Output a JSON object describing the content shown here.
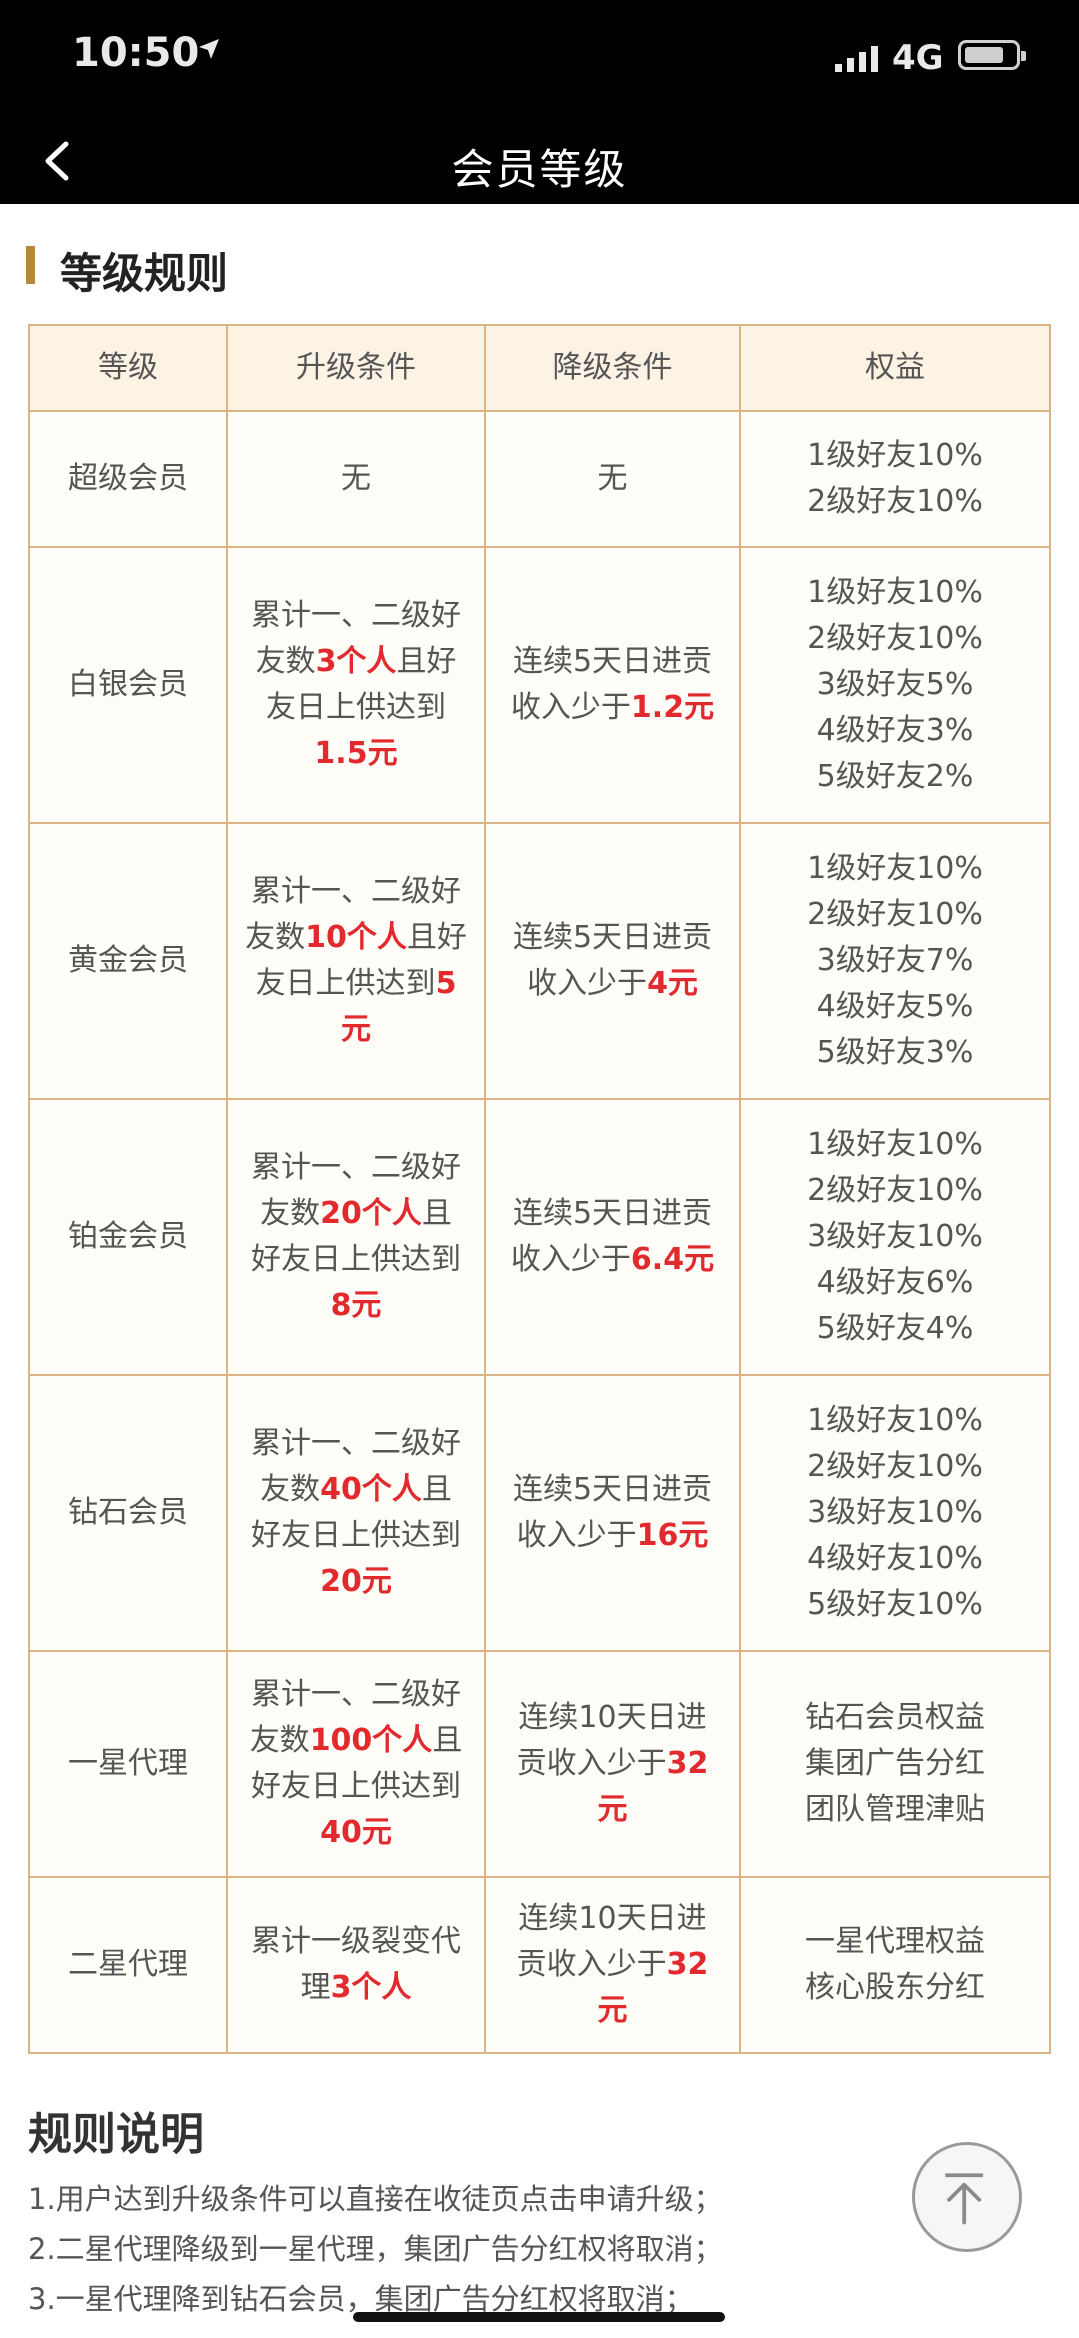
{
  "status_bar": {
    "time": "10:50",
    "network": "4G",
    "icons": [
      "location-arrow-icon",
      "signal-bars-icon",
      "battery-icon"
    ]
  },
  "nav": {
    "back_icon": "chevron-left-icon",
    "title": "会员等级"
  },
  "section": {
    "title": "等级规则",
    "accent_color": "#b8863d"
  },
  "table": {
    "headers": [
      "等级",
      "升级条件",
      "降级条件",
      "权益"
    ],
    "rows": [
      {
        "level": "超级会员",
        "upgrade": [
          [
            "无"
          ]
        ],
        "downgrade": [
          [
            "无"
          ]
        ],
        "benefits": [
          "1级好友10%",
          "2级好友10%"
        ]
      },
      {
        "level": "白银会员",
        "upgrade": [
          [
            "累计一、二级好"
          ],
          [
            "友数",
            {
              "t": "3个人",
              "red": true
            },
            "且好"
          ],
          [
            "友日上供达到"
          ],
          [
            {
              "t": "1.5元",
              "red": true
            }
          ]
        ],
        "downgrade": [
          [
            "连续5天日进贡"
          ],
          [
            "收入少于",
            {
              "t": "1.2元",
              "red": true
            }
          ]
        ],
        "benefits": [
          "1级好友10%",
          "2级好友10%",
          "3级好友5%",
          "4级好友3%",
          "5级好友2%"
        ]
      },
      {
        "level": "黄金会员",
        "upgrade": [
          [
            "累计一、二级好"
          ],
          [
            "友数",
            {
              "t": "10个人",
              "red": true
            },
            "且好"
          ],
          [
            "友日上供达到",
            {
              "t": "5",
              "red": true
            }
          ],
          [
            {
              "t": "元",
              "red": true
            }
          ]
        ],
        "downgrade": [
          [
            "连续5天日进贡"
          ],
          [
            "收入少于",
            {
              "t": "4元",
              "red": true
            }
          ]
        ],
        "benefits": [
          "1级好友10%",
          "2级好友10%",
          "3级好友7%",
          "4级好友5%",
          "5级好友3%"
        ]
      },
      {
        "level": "铂金会员",
        "upgrade": [
          [
            "累计一、二级好"
          ],
          [
            "友数",
            {
              "t": "20个人",
              "red": true
            },
            "且"
          ],
          [
            "好友日上供达到"
          ],
          [
            {
              "t": "8元",
              "red": true
            }
          ]
        ],
        "downgrade": [
          [
            "连续5天日进贡"
          ],
          [
            "收入少于",
            {
              "t": "6.4元",
              "red": true
            }
          ]
        ],
        "benefits": [
          "1级好友10%",
          "2级好友10%",
          "3级好友10%",
          "4级好友6%",
          "5级好友4%"
        ]
      },
      {
        "level": "钻石会员",
        "upgrade": [
          [
            "累计一、二级好"
          ],
          [
            "友数",
            {
              "t": "40个人",
              "red": true
            },
            "且"
          ],
          [
            "好友日上供达到"
          ],
          [
            {
              "t": "20元",
              "red": true
            }
          ]
        ],
        "downgrade": [
          [
            "连续5天日进贡"
          ],
          [
            "收入少于",
            {
              "t": "16元",
              "red": true
            }
          ]
        ],
        "benefits": [
          "1级好友10%",
          "2级好友10%",
          "3级好友10%",
          "4级好友10%",
          "5级好友10%"
        ]
      },
      {
        "level": "一星代理",
        "upgrade": [
          [
            "累计一、二级好"
          ],
          [
            "友数",
            {
              "t": "100个人",
              "red": true
            },
            "且"
          ],
          [
            "好友日上供达到"
          ],
          [
            {
              "t": "40元",
              "red": true
            }
          ]
        ],
        "downgrade": [
          [
            "连续10天日进"
          ],
          [
            "贡收入少于",
            {
              "t": "32",
              "red": true
            }
          ],
          [
            {
              "t": "元",
              "red": true
            }
          ]
        ],
        "benefits": [
          "钻石会员权益",
          "集团广告分红",
          "团队管理津贴"
        ]
      },
      {
        "level": "二星代理",
        "upgrade": [
          [
            "累计一级裂变代"
          ],
          [
            "理",
            {
              "t": "3个人",
              "red": true
            }
          ]
        ],
        "downgrade": [
          [
            "连续10天日进"
          ],
          [
            "贡收入少于",
            {
              "t": "32",
              "red": true
            }
          ],
          [
            {
              "t": "元",
              "red": true
            }
          ]
        ],
        "benefits": [
          "一星代理权益",
          "核心股东分红"
        ]
      }
    ],
    "highlight_color": "#e1292e",
    "border_color": "#d8b583",
    "header_bg": "#fdf3e4"
  },
  "rules": {
    "title": "规则说明",
    "items": [
      "1.用户达到升级条件可以直接在收徒页点击申请升级；",
      "2.二星代理降级到一星代理，集团广告分红权将取消；",
      "3.一星代理降到钻石会员，集团广告分红权将取消；"
    ]
  },
  "back_to_top_icon": "arrow-up-to-top-icon"
}
